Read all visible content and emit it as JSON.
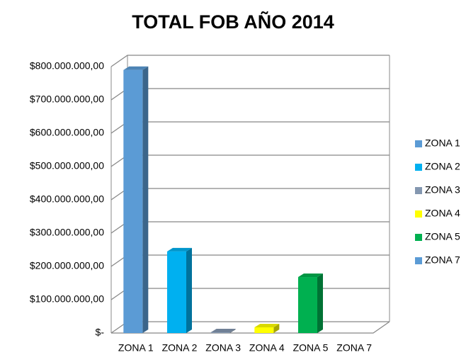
{
  "chart_data": {
    "type": "bar3d",
    "title": "TOTAL FOB AÑO 2014",
    "categories": [
      "ZONA 1",
      "ZONA 2",
      "ZONA 3",
      "ZONA 4",
      "ZONA 5",
      "ZONA 7"
    ],
    "values": [
      790000000,
      245000000,
      2000000,
      17000000,
      168000000,
      0
    ],
    "colors": [
      "#5b9bd5",
      "#00b0f0",
      "#8497b0",
      "#ffff00",
      "#00b050",
      "#5b9bd5"
    ],
    "ylim": [
      0,
      800000000
    ],
    "yticks": [
      {
        "value": 0,
        "label": "$-"
      },
      {
        "value": 100000000,
        "label": "$100.000.000,00"
      },
      {
        "value": 200000000,
        "label": "$200.000.000,00"
      },
      {
        "value": 300000000,
        "label": "$300.000.000,00"
      },
      {
        "value": 400000000,
        "label": "$400.000.000,00"
      },
      {
        "value": 500000000,
        "label": "$500.000.000,00"
      },
      {
        "value": 600000000,
        "label": "$600.000.000,00"
      },
      {
        "value": 700000000,
        "label": "$700.000.000,00"
      },
      {
        "value": 800000000,
        "label": "$800.000.000,00"
      }
    ],
    "grid": true,
    "legend": "right"
  }
}
